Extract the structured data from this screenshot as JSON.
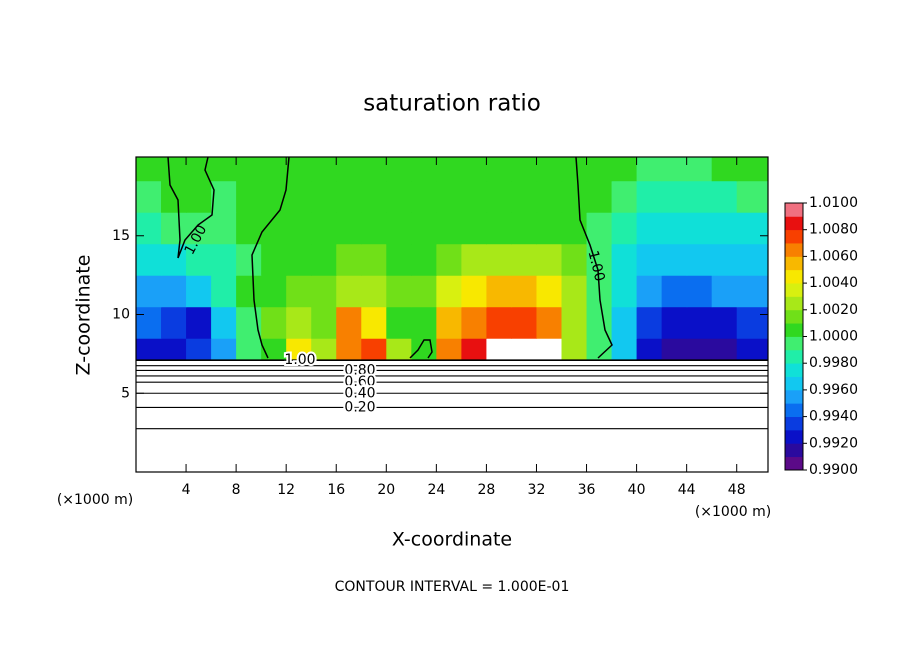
{
  "chart_data": {
    "type": "contour",
    "title": "saturation ratio",
    "xlabel": "X-coordinate",
    "ylabel": "Z-coordinate",
    "x_unit_left": "(×1000 m)",
    "x_unit_right": "(×1000 m)",
    "footer": "CONTOUR INTERVAL = 1.000E-01",
    "xlim": [
      0,
      50.5
    ],
    "ylim": [
      0,
      20
    ],
    "xticks": [
      4,
      8,
      12,
      16,
      20,
      24,
      28,
      32,
      36,
      40,
      44,
      48
    ],
    "yticks": [
      5,
      10,
      15
    ],
    "x": [
      1,
      3,
      5,
      7,
      9,
      11,
      13,
      15,
      17,
      19,
      21,
      23,
      25,
      27,
      29,
      31,
      33,
      35,
      37,
      39,
      41,
      43,
      45,
      47,
      49
    ],
    "y": [
      7.5,
      9.5,
      11.5,
      13.5,
      15.5,
      17.5,
      19.5
    ],
    "z": [
      [
        0.9925,
        0.9925,
        0.993,
        0.995,
        0.999,
        1.001,
        1.0045,
        1.002,
        1.007,
        1.0075,
        1.003,
        1.0005,
        1.007,
        1.008,
        1.011,
        1.011,
        1.01,
        1.003,
        0.9995,
        0.996,
        0.9925,
        0.9915,
        0.991,
        0.9915,
        0.992
      ],
      [
        0.994,
        0.9935,
        0.9925,
        0.996,
        0.9995,
        1.0015,
        1.003,
        1.0015,
        1.006,
        1.005,
        1.001,
        1.0005,
        1.0055,
        1.0065,
        1.0075,
        1.0075,
        1.007,
        1.0025,
        0.9995,
        0.9965,
        0.9935,
        0.9925,
        0.992,
        0.9925,
        0.993
      ],
      [
        0.9955,
        0.9955,
        0.9965,
        0.998,
        1.0,
        1.0008,
        1.0015,
        1.0015,
        1.0028,
        1.0022,
        1.0012,
        1.0012,
        1.0035,
        1.0045,
        1.0052,
        1.0055,
        1.0048,
        1.0025,
        0.9998,
        0.997,
        0.995,
        0.9945,
        0.9945,
        0.995,
        0.9955
      ],
      [
        0.9972,
        0.9975,
        0.998,
        0.9988,
        0.9998,
        1.0004,
        1.0008,
        1.001,
        1.0014,
        1.0014,
        1.001,
        1.001,
        1.0018,
        1.0022,
        1.0025,
        1.0025,
        1.0022,
        1.0012,
        0.9998,
        0.9978,
        0.9965,
        0.996,
        0.9962,
        0.9965,
        0.9968
      ],
      [
        0.9985,
        0.999,
        0.9994,
        0.9998,
        1.0001,
        1.0004,
        1.0006,
        1.0007,
        1.0008,
        1.0008,
        1.0008,
        1.0008,
        1.0009,
        1.001,
        1.001,
        1.001,
        1.0009,
        1.0006,
        0.9999,
        0.9985,
        0.9975,
        0.9972,
        0.9972,
        0.9975,
        0.9978
      ],
      [
        0.9998,
        1.0002,
        1.0,
        0.9999,
        1.0002,
        1.0004,
        1.0005,
        1.0005,
        1.0006,
        1.0006,
        1.0006,
        1.0006,
        1.0006,
        1.0006,
        1.0006,
        1.0006,
        1.0006,
        1.0004,
        1.0,
        0.999,
        0.9986,
        0.9986,
        0.9986,
        0.9988,
        0.999
      ],
      [
        1.0004,
        1.0,
        1.0001,
        1.0002,
        1.0003,
        1.0004,
        1.0005,
        1.0005,
        1.0005,
        1.0005,
        1.0005,
        1.0005,
        1.0005,
        1.0005,
        1.0005,
        1.0005,
        1.0005,
        1.0004,
        1.0002,
        1.0,
        0.9998,
        0.9997,
        0.9998,
        1.0,
        1.0001
      ]
    ],
    "colorbar": {
      "lim": [
        0.99,
        1.01
      ],
      "ticks": [
        {
          "value": 0.99,
          "label": "0.9900"
        },
        {
          "value": 0.992,
          "label": "0.9920"
        },
        {
          "value": 0.994,
          "label": "0.9940"
        },
        {
          "value": 0.996,
          "label": "0.9960"
        },
        {
          "value": 0.998,
          "label": "0.9980"
        },
        {
          "value": 1.0,
          "label": "1.0000"
        },
        {
          "value": 1.002,
          "label": "1.0020"
        },
        {
          "value": 1.004,
          "label": "1.0040"
        },
        {
          "value": 1.006,
          "label": "1.0060"
        },
        {
          "value": 1.008,
          "label": "1.0080"
        },
        {
          "value": 1.01,
          "label": "1.0100"
        }
      ],
      "colors": [
        "#5b0a88",
        "#2a0a9e",
        "#0a10c8",
        "#0a3ce0",
        "#0a6ef0",
        "#1aa0f8",
        "#12c8f0",
        "#10e0d8",
        "#20eea8",
        "#40ee70",
        "#30d820",
        "#70e018",
        "#a8e818",
        "#d8f010",
        "#f8e800",
        "#f8b800",
        "#f88000",
        "#f84000",
        "#e81010",
        "#f07080"
      ]
    },
    "contours": [
      {
        "value": 1.0,
        "label": "1.00",
        "z": 7.1
      },
      {
        "value": 0.9,
        "z": 6.75
      },
      {
        "value": 0.8,
        "label": "0.80",
        "z": 6.45
      },
      {
        "value": 0.7,
        "z": 6.1
      },
      {
        "value": 0.6,
        "label": "0.60",
        "z": 5.7
      },
      {
        "value": 0.4,
        "label": "0.40",
        "z": 5.0
      },
      {
        "value": 0.2,
        "label": "0.20",
        "z": 4.1
      },
      {
        "value": 0.1,
        "z": 2.75
      }
    ],
    "upper_contour_labels": [
      "1.00",
      "1.00"
    ]
  }
}
